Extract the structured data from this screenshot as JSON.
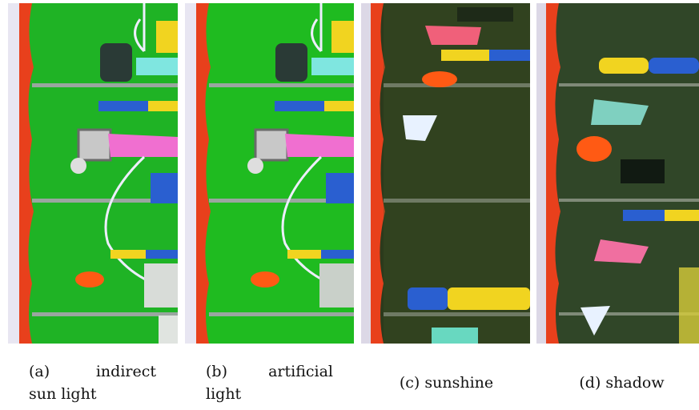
{
  "figure": {
    "panels": [
      {
        "id": "a",
        "image_label": "indirect sun light image"
      },
      {
        "id": "b",
        "image_label": "artificial light image"
      },
      {
        "id": "c",
        "image_label": "sunshine image"
      },
      {
        "id": "d",
        "image_label": "shadow image"
      }
    ],
    "captions": {
      "a_tag": "(a)",
      "a_w1": "indirect",
      "a_w2": "sun light",
      "b_tag": "(b)",
      "b_w1": "artificial",
      "b_w2": "light",
      "c": "(c) sunshine",
      "d": "(d) shadow"
    }
  },
  "colors": {
    "field_green": "#1fb325",
    "grass_dark": "#2c3a1c",
    "border_red": "#e8401c",
    "ball_orange": "#ff5a14",
    "post_yellow": "#f1d420",
    "post_blue": "#2a5fd0",
    "flag_pink": "#f06fd0"
  }
}
